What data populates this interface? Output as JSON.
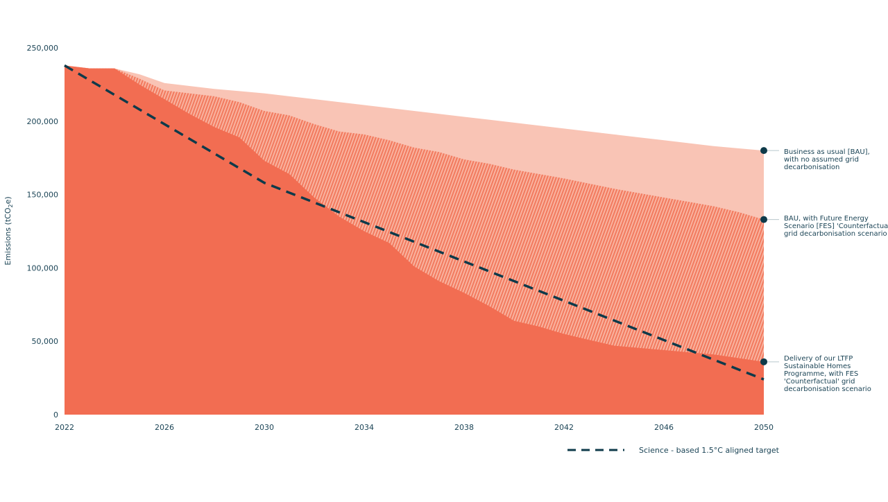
{
  "chart_data": {
    "type": "area",
    "title": "",
    "xlabel": "",
    "ylabel": "Emissions (tCO2e)",
    "ylabel_parts": {
      "main": "Emissions (tCO",
      "sub": "2",
      "tail": "e)"
    },
    "xlim": [
      2022,
      2050
    ],
    "ylim": [
      0,
      250000
    ],
    "x_ticks": [
      2022,
      2026,
      2030,
      2034,
      2038,
      2042,
      2046,
      2050
    ],
    "y_ticks": [
      0,
      50000,
      100000,
      150000,
      200000,
      250000
    ],
    "y_tick_labels": [
      "0",
      "50,000",
      "100,000",
      "150,000",
      "200,000",
      "250,000"
    ],
    "grid": false,
    "x": [
      2022,
      2023,
      2024,
      2025,
      2026,
      2027,
      2028,
      2029,
      2030,
      2031,
      2032,
      2033,
      2034,
      2035,
      2036,
      2037,
      2038,
      2039,
      2040,
      2041,
      2042,
      2043,
      2044,
      2045,
      2046,
      2047,
      2048,
      2049,
      2050
    ],
    "series": [
      {
        "name": "Business as usual (BAU), with no assumed grid decarbonisation",
        "color": "#f9c4b5",
        "values": [
          238000,
          236000,
          236000,
          232000,
          226000,
          224000,
          222000,
          220500,
          219000,
          217000,
          215000,
          213000,
          211000,
          209000,
          207000,
          205000,
          203000,
          201000,
          199000,
          197000,
          195000,
          193000,
          191000,
          189000,
          187000,
          185000,
          183000,
          181500,
          180000
        ]
      },
      {
        "name": "BAU, with Future Energy Scenario (FES) 'Counterfactual' grid decarbonisation scenario",
        "color": "#f58c72",
        "pattern": "hatched",
        "values": [
          238000,
          236000,
          236000,
          229000,
          221000,
          219000,
          217000,
          213000,
          207000,
          204000,
          198000,
          193000,
          191000,
          187000,
          182000,
          179000,
          174000,
          171000,
          167000,
          164000,
          161000,
          157500,
          154000,
          151000,
          148000,
          145000,
          142000,
          138000,
          133000
        ]
      },
      {
        "name": "Delivery of our LTFP Sustainable Homes Programme, with FES 'Counterfactual' grid decarbonisation scenario",
        "color": "#f26d52",
        "values": [
          238000,
          236000,
          236000,
          225000,
          215000,
          205000,
          196000,
          189000,
          173000,
          164000,
          148000,
          135000,
          125000,
          117000,
          101000,
          91000,
          83000,
          74000,
          64000,
          60000,
          55000,
          51000,
          47000,
          45500,
          44000,
          42500,
          41000,
          38500,
          36000
        ]
      }
    ],
    "target": {
      "name": "Science - based 1.5°C aligned target",
      "color": "#0e3a4a",
      "style": "dashed",
      "x": [
        2022,
        2030,
        2050
      ],
      "values": [
        238000,
        158000,
        24000
      ]
    },
    "legend_placement": "right"
  }
}
